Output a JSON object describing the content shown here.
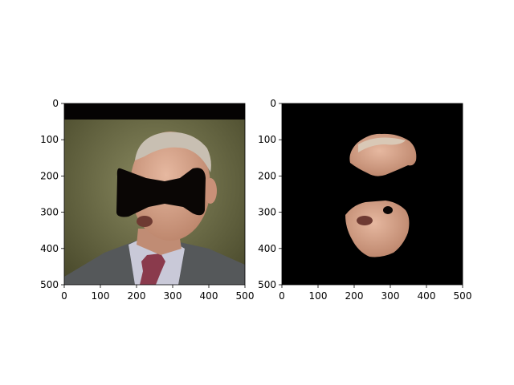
{
  "chart_data": [
    {
      "type": "image",
      "subject": "photo",
      "xlim": [
        0,
        500
      ],
      "ylim": [
        500,
        0
      ],
      "xticks": [
        0,
        100,
        200,
        300,
        400,
        500
      ],
      "yticks": [
        0,
        100,
        200,
        300,
        400,
        500
      ],
      "xtick_labels": [
        "0",
        "100",
        "200",
        "300",
        "400",
        "500"
      ],
      "ytick_labels": [
        "0",
        "100",
        "200",
        "300",
        "400",
        "500"
      ]
    },
    {
      "type": "image",
      "subject": "masked",
      "xlim": [
        0,
        500
      ],
      "ylim": [
        500,
        0
      ],
      "xticks": [
        0,
        100,
        200,
        300,
        400,
        500
      ],
      "yticks": [
        0,
        100,
        200,
        300,
        400,
        500
      ],
      "xtick_labels": [
        "0",
        "100",
        "200",
        "300",
        "400",
        "500"
      ],
      "ytick_labels": [
        "0",
        "100",
        "200",
        "300",
        "400",
        "500"
      ]
    }
  ],
  "colors": {
    "background": "#000000",
    "olive_bg": "#6b6a44",
    "skin": "#d9a88c",
    "suit": "#55585a",
    "shirt": "#c9c9d8",
    "tie": "#8a3a4c",
    "hair": "#c8bfb2"
  }
}
